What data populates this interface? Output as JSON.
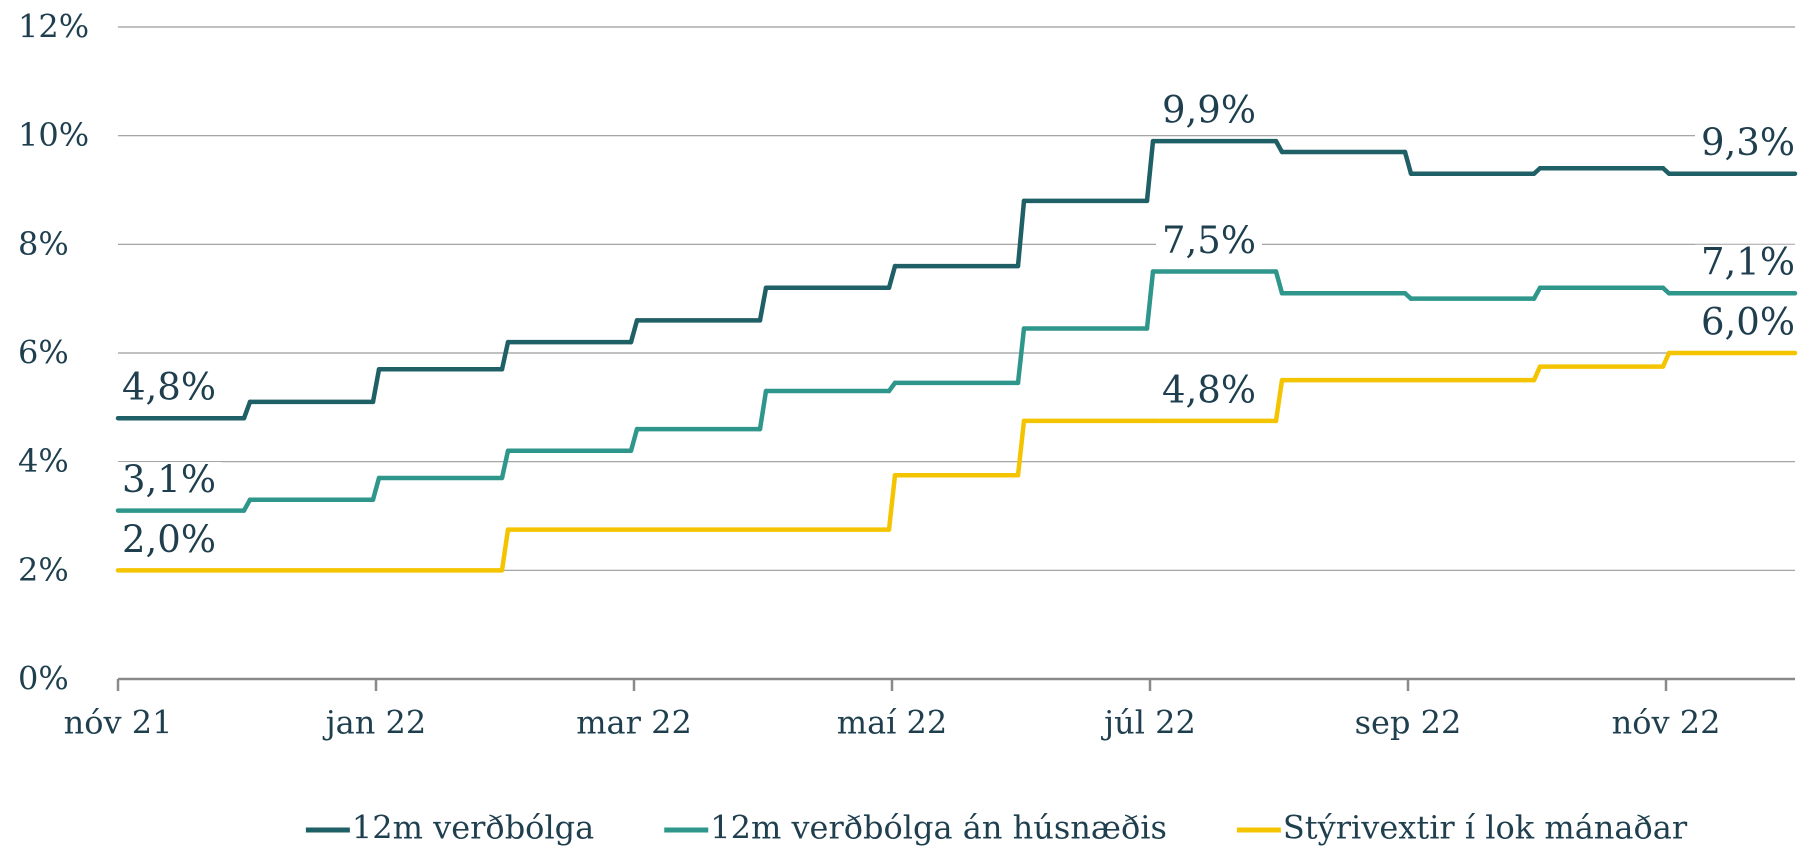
{
  "chart_data": {
    "type": "step",
    "categories": [
      "nóv 21",
      null,
      "jan 22",
      null,
      "mar 22",
      null,
      "maí 22",
      null,
      "júl 22",
      null,
      "sep 22",
      null,
      "nóv 22"
    ],
    "series": [
      {
        "name": "12m verðbólga",
        "color": "#1f5f66",
        "values": [
          4.8,
          5.1,
          5.7,
          6.2,
          6.6,
          7.2,
          7.6,
          8.8,
          9.9,
          9.7,
          9.3,
          9.4,
          9.3
        ],
        "value_labels": [
          "4,8%",
          null,
          null,
          null,
          null,
          null,
          null,
          null,
          "9,9%",
          null,
          null,
          null,
          "9,3%"
        ]
      },
      {
        "name": "12m verðbólga án húsnæðis",
        "color": "#2e968a",
        "values": [
          3.1,
          3.3,
          3.7,
          4.2,
          4.6,
          5.3,
          5.45,
          6.45,
          7.5,
          7.1,
          7.0,
          7.2,
          7.1
        ],
        "value_labels": [
          "3,1%",
          null,
          null,
          null,
          null,
          null,
          null,
          null,
          "7,5%",
          null,
          null,
          null,
          "7,1%"
        ]
      },
      {
        "name": "Stýrivextir í lok mánaðar",
        "color": "#f5c400",
        "values": [
          2.0,
          2.0,
          2.0,
          2.75,
          2.75,
          2.75,
          3.75,
          4.75,
          4.75,
          5.5,
          5.5,
          5.75,
          6.0
        ],
        "value_labels": [
          "2,0%",
          null,
          null,
          null,
          null,
          null,
          null,
          null,
          "4,8%",
          null,
          null,
          null,
          "6,0%"
        ]
      }
    ],
    "ylim": [
      0,
      12
    ],
    "yticks": [
      {
        "value": 0,
        "label": "0%"
      },
      {
        "value": 2,
        "label": "2%"
      },
      {
        "value": 4,
        "label": "4%"
      },
      {
        "value": 6,
        "label": "6%"
      },
      {
        "value": 8,
        "label": "8%"
      },
      {
        "value": 10,
        "label": "10%"
      },
      {
        "value": 12,
        "label": "12%"
      }
    ],
    "grid": true,
    "legend": "bottom"
  }
}
